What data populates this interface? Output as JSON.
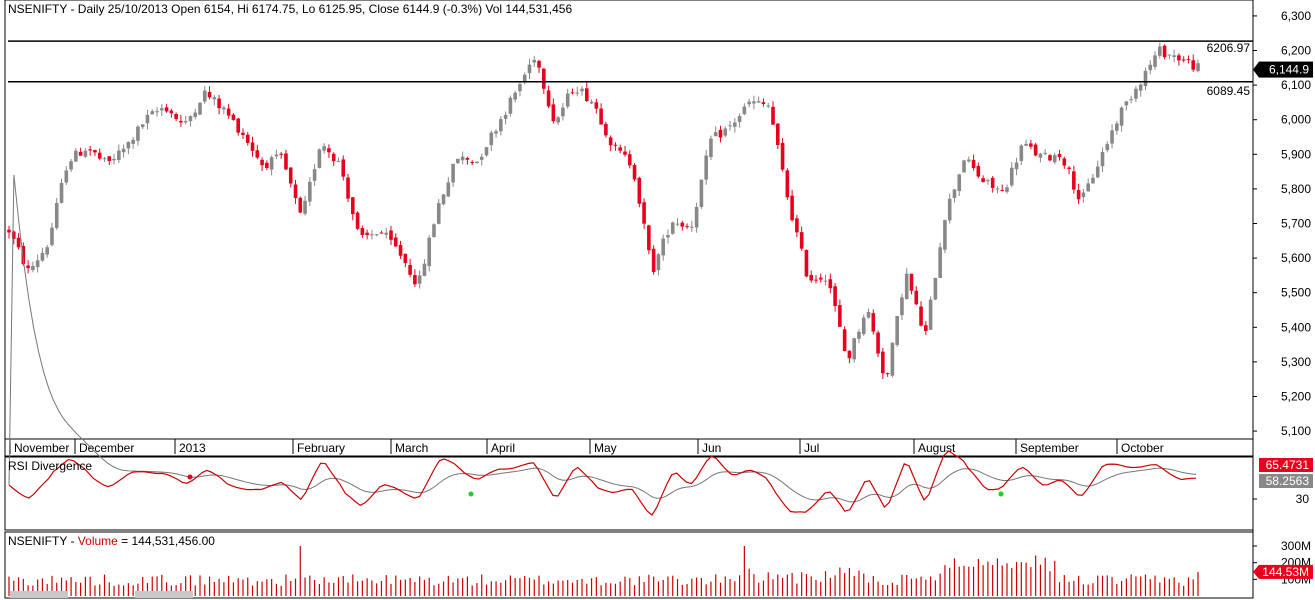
{
  "price_panel": {
    "title": "NSENIFTY - Daily 25/10/2013 Open 6154, Hi 6174.75, Lo 6125.95, Close 6144.9 (-0.3%) Vol 144,531,456",
    "last_price_tag": "6,144.9",
    "resistance_label": "6206.97",
    "support_label": "6089.45"
  },
  "rsi_panel": {
    "title": "RSI Divergence",
    "value_red": "65.4731",
    "value_gray": "58.2563",
    "tick_label": "30"
  },
  "volume_panel": {
    "title_prefix": "NSENIFTY - ",
    "title_series": "Volume",
    "title_suffix": " = 144,531,456.00",
    "tick_300": "300M",
    "tick_200": "200M",
    "tick_100": "100M",
    "last_tag": "144.53M"
  },
  "colors": {
    "up_candle": "#888888",
    "down_candle": "#e8001c",
    "rsi_line": "#cc0000",
    "rsi_signal": "#777777",
    "volume_bar": "#cc0000",
    "price_tag_bg": "#000000"
  },
  "chart_data": [
    {
      "type": "candlestick",
      "title": "NSENIFTY - Daily 25/10/2013 Open 6154, Hi 6174.75, Lo 6125.95, Close 6144.9 (-0.3%) Vol 144,531,456",
      "x_tick_labels": [
        "November",
        "December",
        "2013",
        "February",
        "March",
        "April",
        "May",
        "Jun",
        "Jul",
        "August",
        "September",
        "October"
      ],
      "y_tick_labels": [
        "6,300",
        "6,200",
        "6,100",
        "6,000",
        "5,900",
        "5,800",
        "5,700",
        "5,600",
        "5,500",
        "5,400",
        "5,300",
        "5,200",
        "5,100"
      ],
      "ylim": [
        5080,
        6320
      ],
      "horizontal_lines": [
        6206.97,
        6089.45
      ],
      "last_close": 6144.9,
      "series_path": [
        5680,
        5560,
        5640,
        5880,
        5920,
        5870,
        5920,
        6000,
        6040,
        5980,
        6080,
        6030,
        5960,
        5870,
        5890,
        5710,
        5940,
        5870,
        5650,
        5680,
        5620,
        5520,
        5750,
        5890,
        5880,
        5980,
        6080,
        6190,
        5990,
        6100,
        6050,
        5920,
        5870,
        5560,
        5710,
        5690,
        5940,
        5980,
        6050,
        6040,
        5760,
        5540,
        5550,
        5300,
        5460,
        5240,
        5560,
        5370,
        5720,
        5890,
        5820,
        5790,
        5930,
        5890,
        5900,
        5760,
        5890,
        6020,
        6110,
        6200,
        6180,
        6150
      ]
    },
    {
      "type": "line",
      "title": "RSI Divergence",
      "series": [
        {
          "name": "RSI Divergence",
          "last_value": 65.4731
        },
        {
          "last_value": 58.2563
        }
      ],
      "y_tick_labels": [
        "30"
      ]
    },
    {
      "type": "bar",
      "title": "NSENIFTY - Volume = 144,531,456.00",
      "last_value": 144531456,
      "y_tick_labels": [
        "300M",
        "200M",
        "100M"
      ]
    }
  ]
}
